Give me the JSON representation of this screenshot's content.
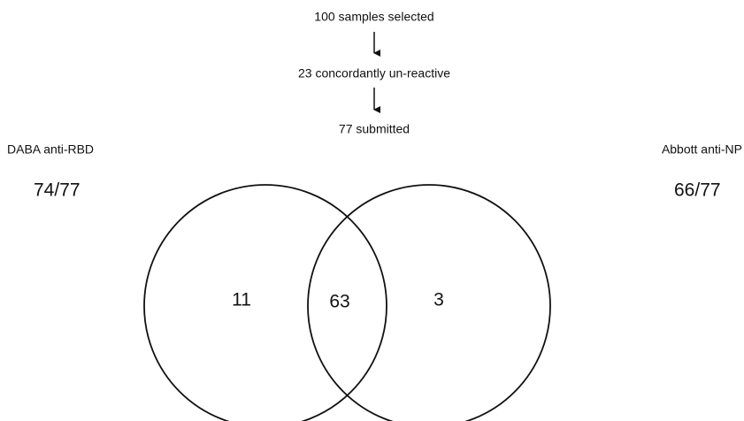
{
  "flow": {
    "steps": [
      "100 samples selected",
      "23 concordantly un-reactive",
      "77 submitted"
    ]
  },
  "sets": [
    {
      "name": "DABA anti-RBD",
      "score": "74/77"
    },
    {
      "name": "Abbott anti-NP",
      "score": "66/77"
    }
  ],
  "regions": {
    "left_only": 11,
    "both": 63,
    "right_only": 3
  }
}
